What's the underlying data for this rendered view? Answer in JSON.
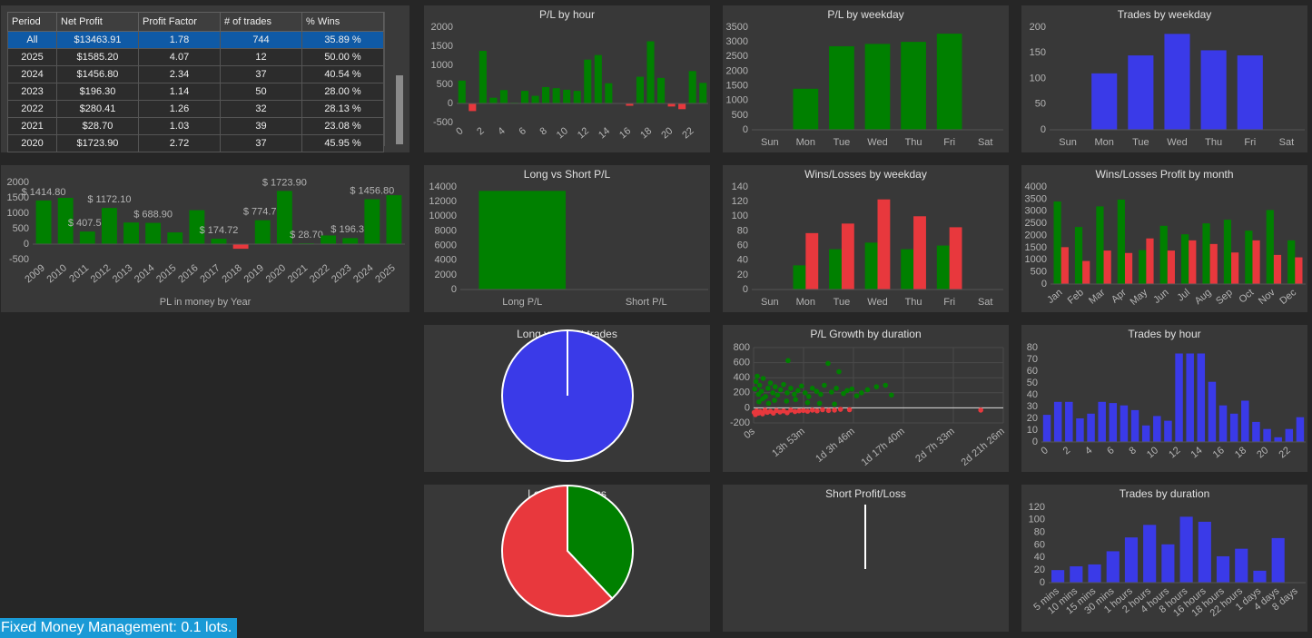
{
  "table": {
    "columns": [
      "Period",
      "Net Profit",
      "Profit Factor",
      "# of trades",
      "% Wins"
    ],
    "rows": [
      [
        "All",
        "$13463.91",
        "1.78",
        "744",
        "35.89 %"
      ],
      [
        "2025",
        "$1585.20",
        "4.07",
        "12",
        "50.00 %"
      ],
      [
        "2024",
        "$1456.80",
        "2.34",
        "37",
        "40.54 %"
      ],
      [
        "2023",
        "$196.30",
        "1.14",
        "50",
        "28.00 %"
      ],
      [
        "2022",
        "$280.41",
        "1.26",
        "32",
        "28.13 %"
      ],
      [
        "2021",
        "$28.70",
        "1.03",
        "39",
        "23.08 %"
      ],
      [
        "2020",
        "$1723.90",
        "2.72",
        "37",
        "45.95 %"
      ]
    ],
    "selected_row": 0
  },
  "chart_data": [
    {
      "type": "bar",
      "title": "P/L by hour",
      "categories": [
        0,
        null,
        2,
        null,
        4,
        null,
        6,
        null,
        8,
        null,
        10,
        null,
        12,
        null,
        14,
        null,
        16,
        null,
        18,
        null,
        20,
        null,
        22,
        null
      ],
      "values": [
        600,
        -200,
        1380,
        150,
        350,
        20,
        330,
        200,
        430,
        400,
        360,
        330,
        1150,
        1270,
        530,
        0,
        -60,
        700,
        1630,
        670,
        -80,
        -150,
        850,
        540
      ],
      "color": "#008000",
      "negative_color": "#e8383d",
      "ylim": [
        -500,
        2000
      ],
      "yticks": [
        -500,
        0,
        500,
        1000,
        1500,
        2000
      ]
    },
    {
      "type": "bar",
      "title": "P/L by weekday",
      "categories": [
        "Sun",
        "Mon",
        "Tue",
        "Wed",
        "Thu",
        "Fri",
        "Sat"
      ],
      "values": [
        0,
        1400,
        2850,
        2930,
        3000,
        3280,
        0
      ],
      "color": "#008000",
      "ylim": [
        0,
        3500
      ],
      "yticks": [
        0,
        500,
        1000,
        1500,
        2000,
        2500,
        3000,
        3500
      ]
    },
    {
      "type": "bar",
      "title": "Trades by weekday",
      "categories": [
        "Sun",
        "Mon",
        "Tue",
        "Wed",
        "Thu",
        "Fri",
        "Sat"
      ],
      "values": [
        0,
        110,
        145,
        187,
        155,
        145,
        0
      ],
      "color": "#3a3ae8",
      "ylim": [
        0,
        200
      ],
      "yticks": [
        0,
        50,
        100,
        150,
        200
      ]
    },
    {
      "type": "bar",
      "xlabel": "PL in money by Year",
      "categories": [
        "2009",
        "2010",
        "2011",
        "2012",
        "2013",
        "2014",
        "2015",
        "2016",
        "2017",
        "2018",
        "2019",
        "2020",
        "2021",
        "2022",
        "2023",
        "2024",
        "2025"
      ],
      "values": [
        1414.8,
        1500,
        407.5,
        1172.1,
        700,
        688.9,
        380,
        1100,
        174.72,
        -150,
        774.7,
        1723.9,
        28.7,
        280.41,
        196.3,
        1456.8,
        1585.2
      ],
      "value_labels": [
        "$ 1414.80",
        null,
        "$ 407.50",
        "$ 1172.10",
        null,
        "$ 688.90",
        null,
        null,
        "$ 174.72",
        null,
        "$ 774.70",
        "$ 1723.90",
        "$ 28.70",
        null,
        "$ 196.30",
        "$ 1456.80",
        null
      ],
      "color": "#008000",
      "negative_color": "#e8383d",
      "ylim": [
        -500,
        2000
      ],
      "yticks": [
        -500,
        0,
        500,
        1000,
        1500,
        2000
      ]
    },
    {
      "type": "bar",
      "title": "Long vs Short P/L",
      "categories": [
        "Long P/L",
        "Short P/L"
      ],
      "values": [
        13463.91,
        0
      ],
      "color": "#008000",
      "ylim": [
        0,
        14000
      ],
      "yticks": [
        0,
        2000,
        4000,
        6000,
        8000,
        10000,
        12000,
        14000
      ]
    },
    {
      "type": "bar",
      "title": "Wins/Losses by weekday",
      "categories": [
        "Sun",
        "Mon",
        "Tue",
        "Wed",
        "Thu",
        "Fri",
        "Sat"
      ],
      "series": [
        {
          "color": "#008000",
          "values": [
            0,
            33,
            55,
            64,
            55,
            60,
            0
          ]
        },
        {
          "color": "#e8383d",
          "values": [
            0,
            77,
            90,
            123,
            100,
            85,
            0
          ]
        }
      ],
      "ylim": [
        0,
        140
      ],
      "yticks": [
        0,
        20,
        40,
        60,
        80,
        100,
        120,
        140
      ]
    },
    {
      "type": "bar",
      "title": "Wins/Losses Profit by month",
      "categories": [
        "Jan",
        "Feb",
        "Mar",
        "Apr",
        "May",
        "Jun",
        "Jul",
        "Aug",
        "Sep",
        "Oct",
        "Nov",
        "Dec"
      ],
      "series": [
        {
          "color": "#008000",
          "values": [
            3400,
            2350,
            3200,
            3480,
            1400,
            2400,
            2050,
            2500,
            2650,
            2200,
            3050,
            1800
          ]
        },
        {
          "color": "#e8383d",
          "values": [
            1520,
            950,
            1380,
            1280,
            1880,
            1380,
            1800,
            1650,
            1300,
            1800,
            1200,
            1100
          ]
        }
      ],
      "ylim": [
        0,
        4000
      ],
      "yticks": [
        0,
        500,
        1000,
        1500,
        2000,
        2500,
        3000,
        3500,
        4000
      ]
    },
    {
      "type": "pie",
      "title": "Long vs Short trades",
      "values": [
        744,
        0
      ],
      "colors": [
        "#3a3ae8",
        "#e8383d"
      ]
    },
    {
      "type": "scatter",
      "title": "P/L Growth by duration",
      "series": [
        {
          "color": "#008000",
          "x": [
            20,
            40,
            60,
            80,
            100,
            130,
            160,
            200,
            240,
            280,
            320,
            360,
            400,
            450,
            500,
            560,
            575,
            620,
            680,
            740,
            800,
            860,
            920,
            980,
            1050,
            1120,
            1180,
            1242,
            1300,
            1380,
            1424,
            1500,
            1560,
            1640,
            1720,
            1800,
            1900,
            2050,
            2200,
            2300,
            90,
            150,
            250,
            350,
            550,
            700,
            900,
            1100,
            1350
          ],
          "values": [
            250,
            350,
            420,
            180,
            300,
            220,
            390,
            150,
            260,
            330,
            200,
            280,
            170,
            240,
            310,
            200,
            627,
            260,
            180,
            230,
            290,
            200,
            150,
            260,
            220,
            180,
            300,
            590,
            210,
            260,
            480,
            190,
            230,
            250,
            160,
            200,
            240,
            280,
            300,
            170,
            80,
            120,
            60,
            100,
            90,
            110,
            70,
            60,
            50
          ]
        },
        {
          "color": "#e8383d",
          "x": [
            10,
            30,
            50,
            80,
            110,
            150,
            190,
            230,
            280,
            330,
            380,
            440,
            500,
            560,
            620,
            690,
            760,
            830,
            900,
            980,
            1060,
            1150,
            1250,
            1350,
            1450,
            1600,
            3790
          ],
          "values": [
            -60,
            -90,
            -40,
            -70,
            -50,
            -80,
            -30,
            -60,
            -45,
            -70,
            -35,
            -55,
            -40,
            -65,
            -30,
            -50,
            -40,
            -35,
            -45,
            -30,
            -40,
            -25,
            -35,
            -30,
            -20,
            -25,
            -30
          ]
        }
      ],
      "xlim": [
        0,
        4166
      ],
      "xticks": [
        {
          "value": 0,
          "label": "0s"
        },
        {
          "value": 833,
          "label": "13h 53m"
        },
        {
          "value": 1666,
          "label": "1d 3h 46m"
        },
        {
          "value": 2500,
          "label": "1d 17h 40m"
        },
        {
          "value": 3333,
          "label": "2d 7h 33m"
        },
        {
          "value": 4166,
          "label": "2d 21h 26m"
        }
      ],
      "ylim": [
        -200,
        800
      ],
      "yticks": [
        -200,
        0,
        200,
        400,
        600,
        800
      ],
      "grid": true
    },
    {
      "type": "bar",
      "title": "Trades by hour",
      "categories": [
        0,
        null,
        2,
        null,
        4,
        null,
        6,
        null,
        8,
        null,
        10,
        null,
        12,
        null,
        14,
        null,
        16,
        null,
        18,
        null,
        20,
        null,
        22,
        null
      ],
      "values": [
        23,
        34,
        34,
        20,
        24,
        34,
        33,
        31,
        27,
        14,
        22,
        18,
        75,
        75,
        75,
        51,
        31,
        24,
        35,
        17,
        11,
        4,
        11,
        21
      ],
      "color": "#3a3ae8",
      "ylim": [
        0,
        80
      ],
      "yticks": [
        0,
        10,
        20,
        30,
        40,
        50,
        60,
        70,
        80
      ]
    },
    {
      "type": "pie",
      "title": "Long Profit/Loss",
      "values": [
        38,
        62
      ],
      "colors": [
        "#008000",
        "#e8383d"
      ]
    },
    {
      "type": "pie",
      "title": "Short Profit/Loss",
      "values": [
        0,
        0
      ],
      "colors": [
        "#008000",
        "#e8383d"
      ]
    },
    {
      "type": "bar",
      "title": "Trades by duration",
      "categories": [
        "5 mins",
        "10 mins",
        "15 mins",
        "30 mins",
        "1 hours",
        "2 hours",
        "4 hours",
        "8 hours",
        "16 hours",
        "18 hours",
        "22 hours",
        "1 days",
        "4 days",
        "8 days"
      ],
      "values": [
        20,
        26,
        29,
        50,
        72,
        92,
        61,
        105,
        97,
        42,
        54,
        19,
        71,
        0
      ],
      "color": "#3a3ae8",
      "ylim": [
        0,
        120
      ],
      "yticks": [
        0,
        20,
        40,
        60,
        80,
        100,
        120
      ]
    }
  ],
  "footer": "Fixed Money Management: 0.1 lots."
}
